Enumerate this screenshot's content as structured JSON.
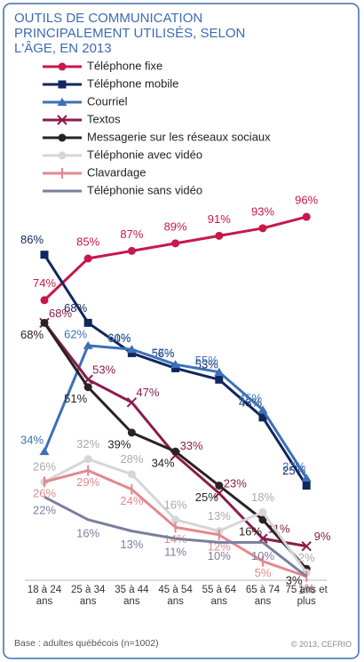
{
  "chart_data": {
    "type": "line",
    "title": "OUTILS DE COMMUNICATION PRINCIPALEMENT UTILISÉS, SELON L'ÂGE, EN 2013",
    "categories": [
      "18 à 24 ans",
      "25 à 34 ans",
      "35 à 44 ans",
      "45 à 54 ans",
      "55 à 64 ans",
      "65 à 74 ans",
      "75 ans et plus"
    ],
    "ylim": [
      0,
      100
    ],
    "series": [
      {
        "name": "Téléphone fixe",
        "color": "#c8174a",
        "marker": "circle",
        "values": [
          74,
          85,
          87,
          89,
          91,
          93,
          96
        ],
        "value_labels": [
          "74%",
          "85%",
          "87%",
          "89%",
          "91%",
          "93%",
          "96%"
        ]
      },
      {
        "name": "Téléphone mobile",
        "color": "#10265e",
        "marker": "square",
        "values": [
          86,
          68,
          60,
          56,
          53,
          43,
          25
        ],
        "value_labels": [
          "86%",
          "68%",
          "60%",
          "56%",
          "53%",
          "43%",
          "25%"
        ]
      },
      {
        "name": "Courriel",
        "color": "#3c70b8",
        "marker": "triangle",
        "values": [
          34,
          62,
          61,
          57,
          55,
          45,
          27
        ],
        "value_labels": [
          "34%",
          "62%",
          "61%",
          "57%",
          "55%",
          "45%",
          "27%"
        ]
      },
      {
        "name": "Textos",
        "color": "#8c1c4c",
        "marker": "cross",
        "values": [
          68,
          53,
          47,
          33,
          23,
          11,
          9
        ],
        "value_labels": [
          "68%",
          "53%",
          "47%",
          "33%",
          "23%",
          "11%",
          "9%"
        ]
      },
      {
        "name": "Messagerie sur les réseaux sociaux",
        "color": "#2b2222",
        "marker": "circle",
        "values": [
          68,
          51,
          39,
          34,
          25,
          16,
          3
        ],
        "value_labels": [
          "68%",
          "51%",
          "39%",
          "34%",
          "25%",
          "16%",
          "3%"
        ]
      },
      {
        "name": "Téléphonie avec vidéo",
        "color": "#d6d6d6",
        "marker": "circle",
        "values": [
          26,
          32,
          28,
          16,
          13,
          18,
          2
        ],
        "value_labels": [
          "26%",
          "32%",
          "28%",
          "16%",
          "13%",
          "18%",
          "2%"
        ]
      },
      {
        "name": "Clavardage",
        "color": "#e3898d",
        "marker": "tick",
        "values": [
          26,
          29,
          24,
          14,
          12,
          5,
          1
        ],
        "value_labels": [
          "26%",
          "29%",
          "24%",
          "14%",
          "12%",
          "5%",
          "1%"
        ]
      },
      {
        "name": "Téléphonie sans vidéo",
        "color": "#7a7f9e",
        "marker": "none",
        "values": [
          22,
          16,
          13,
          11,
          10,
          10,
          1
        ],
        "value_labels": [
          "22%",
          "16%",
          "13%",
          "11%",
          "10%",
          "10%",
          "1%"
        ]
      }
    ],
    "note": "Base : adultes québécois (n=1002)",
    "source": "© 2013, CEFRIO"
  }
}
